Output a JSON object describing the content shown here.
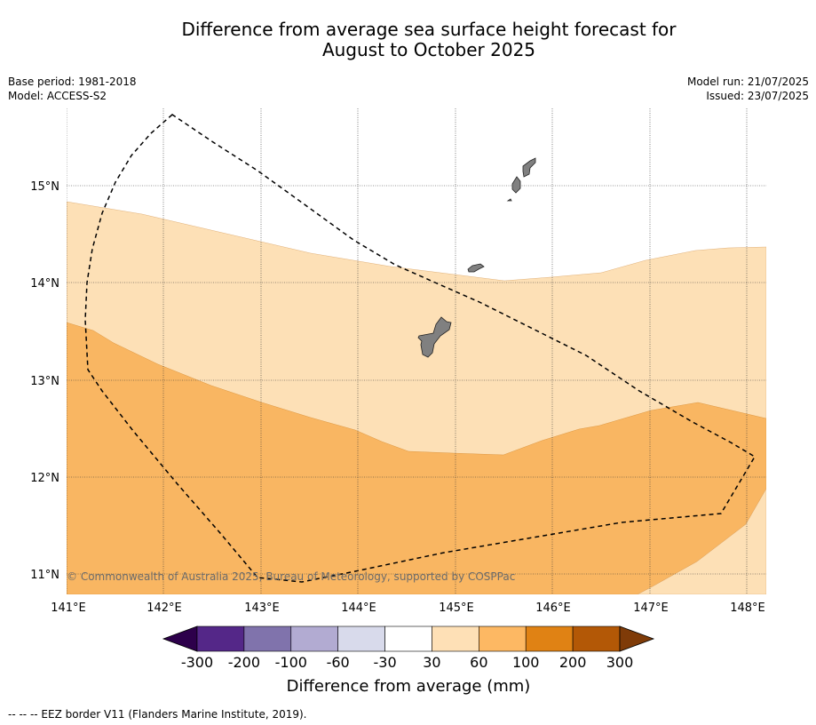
{
  "header": {
    "title_line1": "Difference from average sea surface height forecast for",
    "title_line2": "August to October 2025",
    "base_period": "Base period: 1981-2018",
    "model": "Model: ACCESS-S2",
    "model_run": "Model run: 21/07/2025",
    "issued": "Issued: 23/07/2025"
  },
  "map": {
    "lat_labels": [
      "15°N",
      "14°N",
      "13°N",
      "12°N",
      "11°N"
    ],
    "lon_labels": [
      "141°E",
      "142°E",
      "143°E",
      "144°E",
      "145°E",
      "146°E",
      "147°E",
      "148°E"
    ],
    "copyright": "© Commonwealth of Australia 2025, Bureau of Meteorology, supported by COSPPac",
    "fill_colors": {
      "band_30_60": "#fde0b6",
      "band_60_100": "#f9b662",
      "land": "#808080",
      "eez_line": "#000000"
    }
  },
  "colorbar": {
    "labels": [
      "-300",
      "-200",
      "-100",
      "-60",
      "-30",
      "30",
      "60",
      "100",
      "200",
      "300"
    ],
    "colors": [
      "#2d004b",
      "#542788",
      "#8073ac",
      "#b2abd2",
      "#d8daeb",
      "#ffffff",
      "#fee0b6",
      "#fdb863",
      "#e08214",
      "#b35806",
      "#7f3b08"
    ],
    "title": "Difference from average (mm)"
  },
  "footer": {
    "legend": "--  --  -- EEZ border V11 (Flanders Marine Institute, 2019)."
  }
}
